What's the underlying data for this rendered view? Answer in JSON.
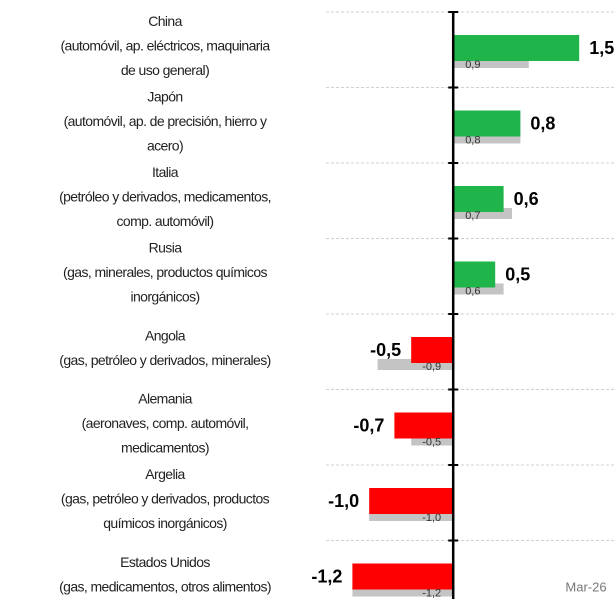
{
  "chart_data": {
    "type": "bar",
    "orientation": "horizontal",
    "categories": [
      [
        "China",
        "(automóvil, ap. eléctricos, maquinaria",
        "de uso general)"
      ],
      [
        "Japón",
        "(automóvil, ap. de precisión, hierro y",
        "acero)"
      ],
      [
        "Italia",
        "(petróleo y derivados, medicamentos,",
        "comp. automóvil)"
      ],
      [
        "Rusia",
        "(gas, minerales, productos químicos",
        "inorgánicos)"
      ],
      [
        "Angola",
        "(gas, petróleo y derivados, minerales)"
      ],
      [
        "Alemania",
        "(aeronaves, comp. automóvil,",
        "medicamentos)"
      ],
      [
        "Argelia",
        "(gas, petróleo y derivados, productos",
        "químicos inorgánicos)"
      ],
      [
        "Estados Unidos",
        "(gas, medicamentos, otros alimentos)"
      ]
    ],
    "series": [
      {
        "color_positive": "#1fb54a",
        "color_negative": "#ff0000",
        "values": [
          1.5,
          0.8,
          0.6,
          0.5,
          -0.5,
          -0.7,
          -1.0,
          -1.2
        ],
        "value_labels": [
          "1,5",
          "0,8",
          "0,6",
          "0,5",
          "-0,5",
          "-0,7",
          "-1,0",
          "-1,2"
        ]
      },
      {
        "color": "#c4c4c4",
        "values": [
          0.9,
          0.8,
          0.7,
          0.6,
          -0.9,
          -0.5,
          -1.0,
          -1.2
        ],
        "value_labels": [
          "0,9",
          "0,8",
          "0,7",
          "0,6",
          "-0,9",
          "-0,5",
          "-1,0",
          "-1,2"
        ]
      }
    ],
    "xlim": [
      -1.3,
      1.7
    ],
    "annotation": "Mar-26"
  }
}
